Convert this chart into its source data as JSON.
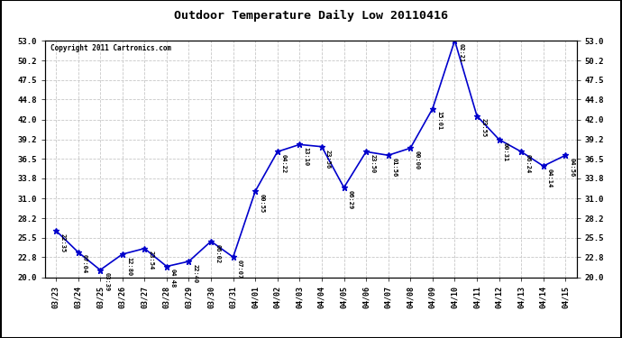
{
  "title": "Outdoor Temperature Daily Low 20110416",
  "copyright": "Copyright 2011 Cartronics.com",
  "line_color": "#0000CC",
  "marker_color": "#0000CC",
  "background_color": "#ffffff",
  "grid_color": "#c8c8c8",
  "x_labels": [
    "03/23",
    "03/24",
    "03/25",
    "03/26",
    "03/27",
    "03/28",
    "03/29",
    "03/30",
    "03/31",
    "04/01",
    "04/02",
    "04/03",
    "04/04",
    "04/05",
    "04/06",
    "04/07",
    "04/08",
    "04/09",
    "04/10",
    "04/11",
    "04/12",
    "04/13",
    "04/14",
    "04/15"
  ],
  "y_values": [
    26.5,
    23.5,
    21.0,
    23.2,
    24.0,
    21.5,
    22.2,
    25.0,
    22.8,
    32.0,
    37.5,
    38.5,
    38.2,
    32.5,
    37.5,
    37.0,
    38.0,
    43.5,
    53.0,
    42.5,
    39.2,
    37.5,
    35.5,
    37.0
  ],
  "time_labels": [
    "22:35",
    "07:04",
    "03:39",
    "12:80",
    "23:54",
    "04:48",
    "22:40",
    "06:02",
    "07:07",
    "00:55",
    "04:22",
    "13:10",
    "23:56",
    "06:29",
    "23:50",
    "01:56",
    "00:00",
    "15:01",
    "02:21",
    "23:55",
    "00:31",
    "06:24",
    "04:14",
    "04:56"
  ],
  "ylim": [
    20.0,
    53.0
  ],
  "yticks": [
    20.0,
    22.8,
    25.5,
    28.2,
    31.0,
    33.8,
    36.5,
    39.2,
    42.0,
    44.8,
    47.5,
    50.2,
    53.0
  ],
  "ytick_labels": [
    "20.0",
    "22.8",
    "25.5",
    "28.2",
    "31.0",
    "33.8",
    "36.5",
    "39.2",
    "42.0",
    "44.8",
    "47.5",
    "50.2",
    "53.0"
  ]
}
